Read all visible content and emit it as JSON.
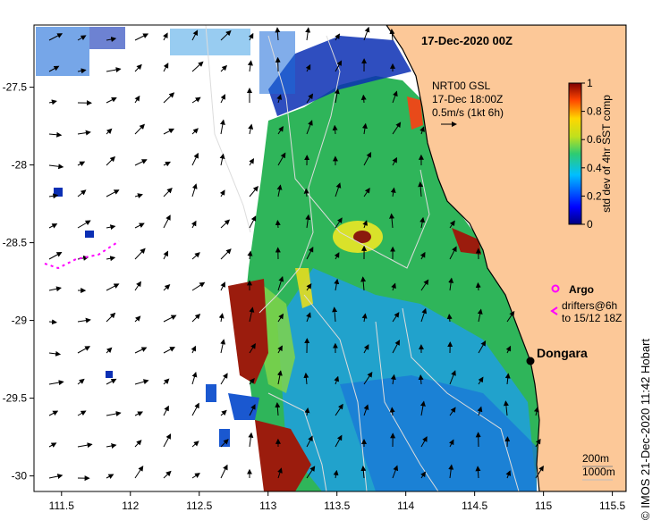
{
  "map": {
    "title": "17-Dec-2020 00Z",
    "current_legend": {
      "line1": "NRT00 GSL",
      "line2": "17-Dec 18:00Z",
      "line3": "0.5m/s (1kt 6h)"
    },
    "colorbar": {
      "label": "std dev of 4hr SST comp",
      "ticks": [
        "0",
        "0.2",
        "0.4",
        "0.6",
        "0.8",
        "1"
      ],
      "range": [
        0,
        1
      ]
    },
    "argo_label": "Argo",
    "drifter_label_1": "drifters@6h",
    "drifter_label_2": "to 15/12 18Z",
    "place_label": "Dongara",
    "bathy_label_1": "200m",
    "bathy_label_2": "1000m",
    "credit": "IMOS 21-Dec-2020 11:42 Hobart",
    "copyright_symbol": "©",
    "x_axis": {
      "ticks": [
        "111.5",
        "112",
        "112.5",
        "113",
        "113.5",
        "114",
        "114.5",
        "115",
        "115.5"
      ],
      "values": [
        111.5,
        112,
        112.5,
        113,
        113.5,
        114,
        114.5,
        115,
        115.5
      ],
      "range": [
        111.3,
        115.6
      ]
    },
    "y_axis": {
      "ticks": [
        "-27.5",
        "-28",
        "-28.5",
        "-29",
        "-29.5",
        "-30"
      ],
      "values": [
        -27.5,
        -28,
        -28.5,
        -29,
        -29.5,
        -30
      ],
      "range": [
        -30.1,
        -27.1
      ]
    },
    "colors": {
      "land": "#fcc898",
      "ocean_bg": "#ffffff",
      "accent_drifter": "#ff00ff",
      "high_var": "#9b1c0d"
    }
  }
}
